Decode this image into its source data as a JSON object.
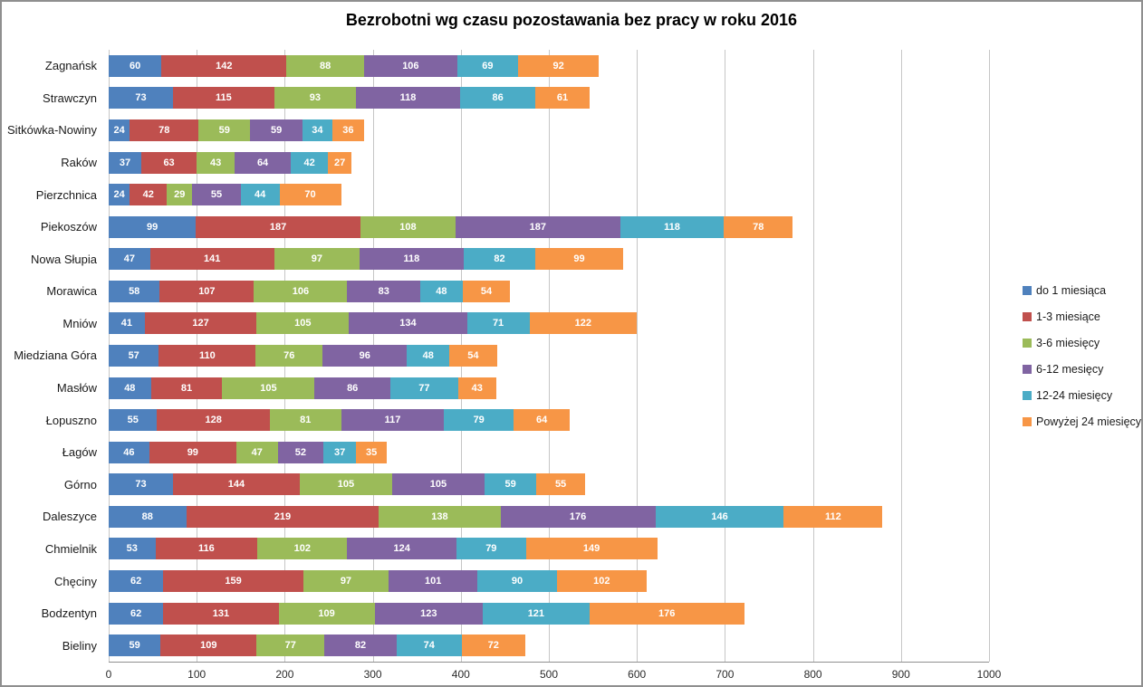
{
  "window": {
    "background_color": "#ffffff",
    "border_color": "#8f8f8f",
    "gridline_color": "#c6c6c6",
    "axis_line_color": "#8f8f8f"
  },
  "chart_data": {
    "type": "bar",
    "orientation": "horizontal-stacked",
    "title": "Bezrobotni wg czasu pozostawania bez pracy w roku 2016",
    "xlabel": "",
    "ylabel": "",
    "xlim": [
      0,
      1000
    ],
    "xticks": [
      0,
      100,
      200,
      300,
      400,
      500,
      600,
      700,
      800,
      900,
      1000
    ],
    "grid": true,
    "legend_position": "right",
    "data_labels": true,
    "data_label_color": "#ffffff",
    "categories": [
      "Zagnańsk",
      "Strawczyn",
      "Sitkówka-Nowiny",
      "Raków",
      "Pierzchnica",
      "Piekoszów",
      "Nowa Słupia",
      "Morawica",
      "Mniów",
      "Miedziana Góra",
      "Masłów",
      "Łopuszno",
      "Łagów",
      "Górno",
      "Daleszyce",
      "Chmielnik",
      "Chęciny",
      "Bodzentyn",
      "Bieliny"
    ],
    "series": [
      {
        "name": "do 1 miesiąca",
        "color": "#4F81BD",
        "values": [
          60,
          73,
          24,
          37,
          24,
          99,
          47,
          58,
          41,
          57,
          48,
          55,
          46,
          73,
          88,
          53,
          62,
          62,
          59
        ]
      },
      {
        "name": "1-3 miesiące",
        "color": "#C0504D",
        "values": [
          142,
          115,
          78,
          63,
          42,
          187,
          141,
          107,
          127,
          110,
          81,
          128,
          99,
          144,
          219,
          116,
          159,
          131,
          109
        ]
      },
      {
        "name": "3-6 miesięcy",
        "color": "#9BBB59",
        "values": [
          88,
          93,
          59,
          43,
          29,
          108,
          97,
          106,
          105,
          76,
          105,
          81,
          47,
          105,
          138,
          102,
          97,
          109,
          77
        ]
      },
      {
        "name": "6-12 mesięcy",
        "color": "#8064A2",
        "values": [
          106,
          118,
          59,
          64,
          55,
          187,
          118,
          83,
          134,
          96,
          86,
          117,
          52,
          105,
          176,
          124,
          101,
          123,
          82
        ]
      },
      {
        "name": "12-24 miesięcy",
        "color": "#4BACC6",
        "values": [
          69,
          86,
          34,
          42,
          44,
          118,
          82,
          48,
          71,
          48,
          77,
          79,
          37,
          59,
          146,
          79,
          90,
          121,
          74
        ]
      },
      {
        "name": "Powyżej 24 miesięcy",
        "color": "#F79646",
        "values": [
          92,
          61,
          36,
          27,
          70,
          78,
          99,
          54,
          122,
          54,
          43,
          64,
          35,
          55,
          112,
          149,
          102,
          176,
          72
        ]
      }
    ]
  }
}
